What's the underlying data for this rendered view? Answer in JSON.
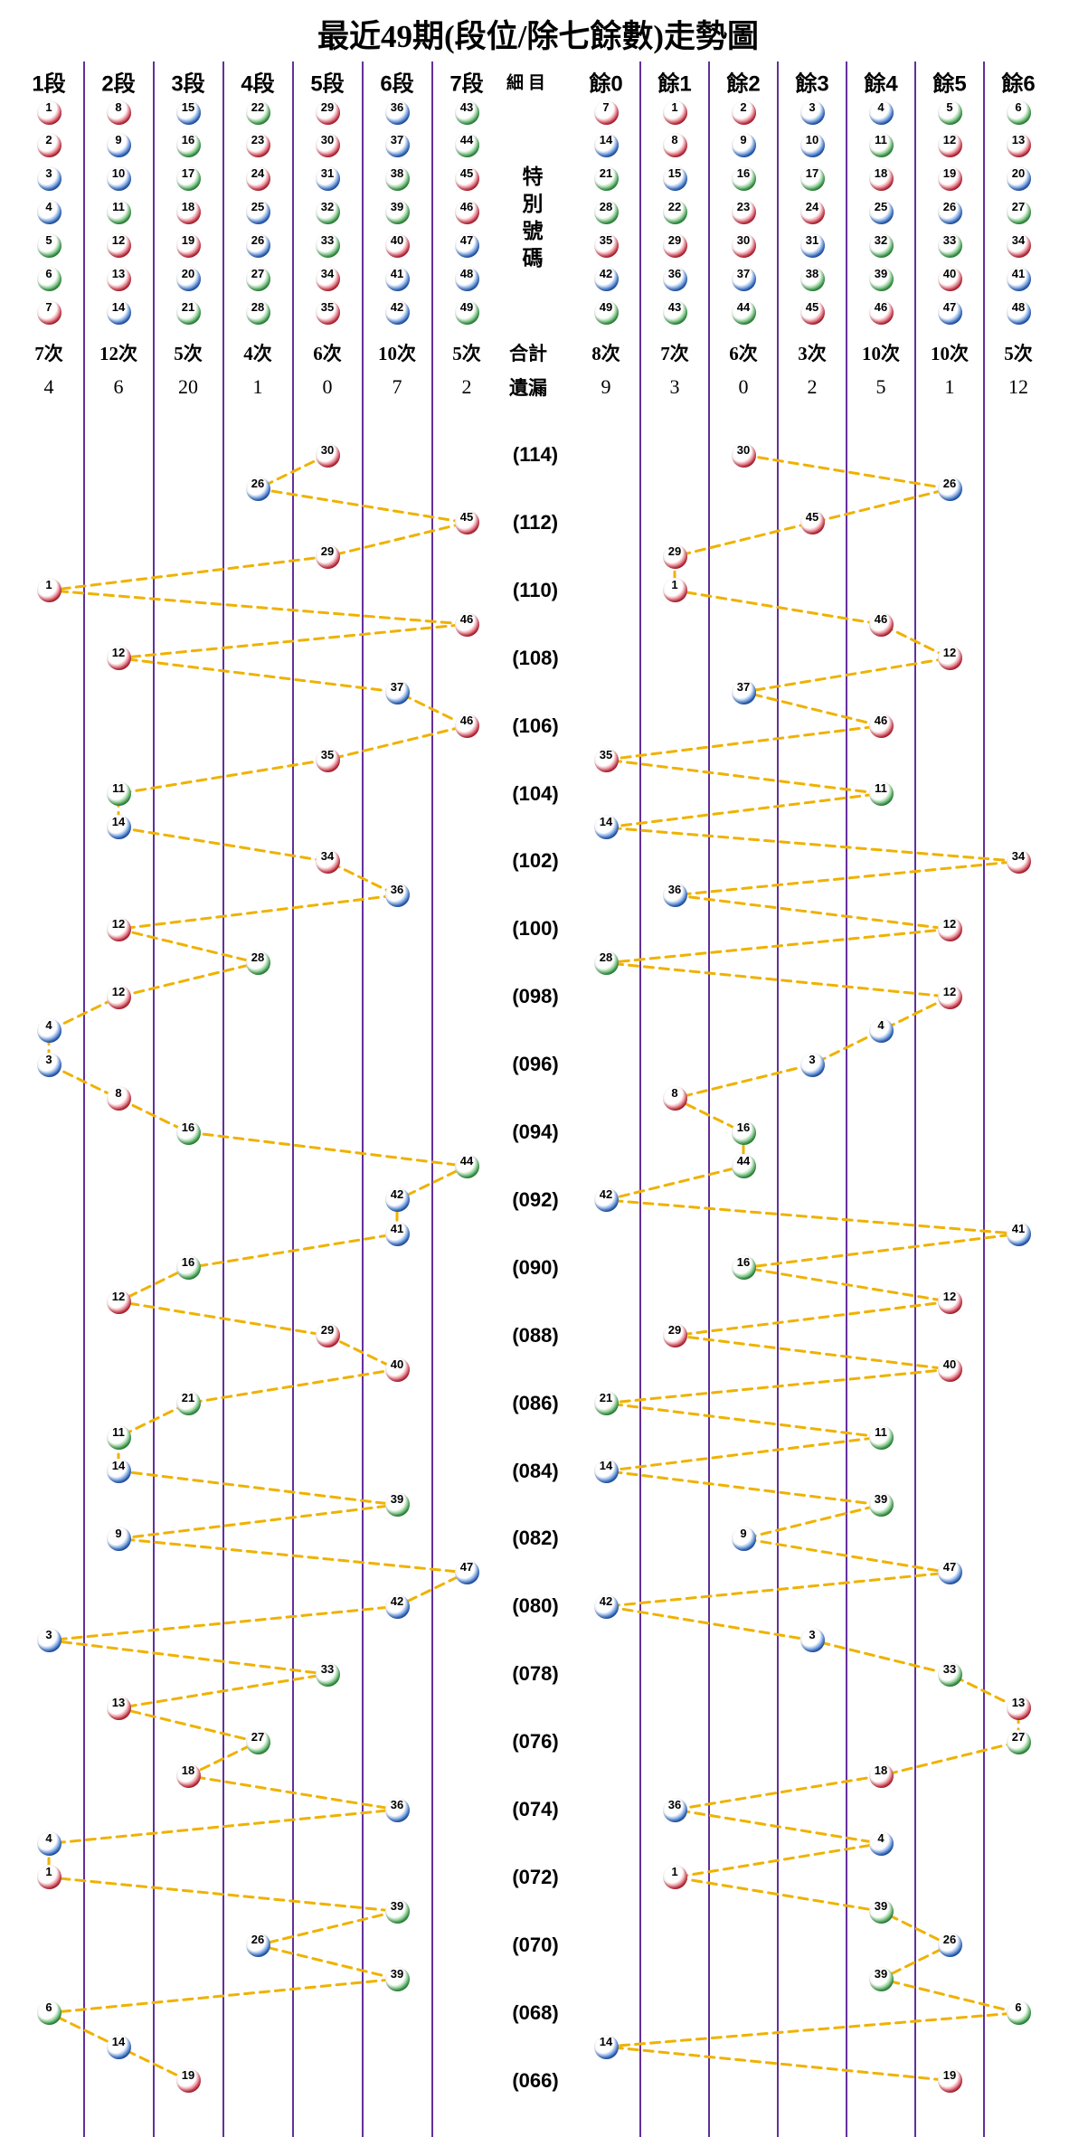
{
  "title": "最近49期(段位/除七餘數)走勢圖",
  "columns": {
    "left_headers": [
      "1段",
      "2段",
      "3段",
      "4段",
      "5段",
      "6段",
      "7段"
    ],
    "middle_header": "細目",
    "right_headers": [
      "餘0",
      "餘1",
      "餘2",
      "餘3",
      "餘4",
      "餘5",
      "餘6"
    ],
    "left_numbers": [
      [
        1,
        2,
        3,
        4,
        5,
        6,
        7
      ],
      [
        8,
        9,
        10,
        11,
        12,
        13,
        14
      ],
      [
        15,
        16,
        17,
        18,
        19,
        20,
        21
      ],
      [
        22,
        23,
        24,
        25,
        26,
        27,
        28
      ],
      [
        29,
        30,
        31,
        32,
        33,
        34,
        35
      ],
      [
        36,
        37,
        38,
        39,
        40,
        41,
        42
      ],
      [
        43,
        44,
        45,
        46,
        47,
        48,
        49
      ]
    ],
    "right_numbers": [
      [
        7,
        14,
        21,
        28,
        35,
        42,
        49
      ],
      [
        1,
        8,
        15,
        22,
        29,
        36,
        43
      ],
      [
        2,
        9,
        16,
        23,
        30,
        37,
        44
      ],
      [
        3,
        10,
        17,
        24,
        31,
        38,
        45
      ],
      [
        4,
        11,
        18,
        25,
        32,
        39,
        46
      ],
      [
        5,
        12,
        19,
        26,
        33,
        40,
        47
      ],
      [
        6,
        13,
        20,
        27,
        34,
        41,
        48
      ]
    ]
  },
  "special_number_label": "特別號碼",
  "summary": {
    "total_label": "合計",
    "miss_label": "遺漏",
    "left_totals": [
      "7次",
      "12次",
      "5次",
      "4次",
      "6次",
      "10次",
      "5次"
    ],
    "right_totals": [
      "8次",
      "7次",
      "6次",
      "3次",
      "10次",
      "10次",
      "5次"
    ],
    "left_misses": [
      "4",
      "6",
      "20",
      "1",
      "0",
      "7",
      "2"
    ],
    "right_misses": [
      "9",
      "3",
      "0",
      "2",
      "5",
      "1",
      "12"
    ]
  },
  "chart_data": {
    "type": "line",
    "title": "最近49期(段位/除七餘數)走勢圖",
    "rows": 49,
    "label_every_other_row": true,
    "period_labels": [
      "(114)",
      "(112)",
      "(110)",
      "(108)",
      "(106)",
      "(104)",
      "(102)",
      "(100)",
      "(098)",
      "(096)",
      "(094)",
      "(092)",
      "(090)",
      "(088)",
      "(086)",
      "(084)",
      "(082)",
      "(080)",
      "(078)",
      "(076)",
      "(074)",
      "(072)",
      "(070)",
      "(068)",
      "(066)"
    ],
    "special_numbers": [
      30,
      26,
      45,
      29,
      1,
      46,
      12,
      37,
      46,
      35,
      11,
      14,
      34,
      36,
      12,
      28,
      12,
      4,
      3,
      8,
      16,
      44,
      42,
      41,
      16,
      12,
      29,
      40,
      21,
      11,
      14,
      39,
      9,
      47,
      42,
      3,
      33,
      13,
      27,
      18,
      36,
      4,
      1,
      39,
      26,
      39,
      6,
      14,
      19
    ],
    "left_axis": "段位 = ceil(n/7) 1..7",
    "right_axis": "除七餘數 = n mod 7 0..6",
    "grid": "vertical purple separators",
    "connector_style": "orange dashed"
  },
  "colors": {
    "grid_line": "#62309A",
    "connector": "#EFB200",
    "ball_red": "#C81F30",
    "ball_blue": "#1D5CC0",
    "ball_green": "#2B9C3A",
    "text": "#000000"
  },
  "ball_color_groups": {
    "red": [
      1,
      2,
      7,
      8,
      12,
      13,
      18,
      19,
      23,
      24,
      29,
      30,
      34,
      35,
      40,
      45,
      46
    ],
    "blue": [
      3,
      4,
      9,
      10,
      14,
      15,
      20,
      25,
      26,
      31,
      36,
      37,
      41,
      42,
      47,
      48
    ],
    "green": [
      5,
      6,
      11,
      16,
      17,
      21,
      22,
      27,
      28,
      32,
      33,
      38,
      39,
      43,
      44,
      49
    ]
  }
}
